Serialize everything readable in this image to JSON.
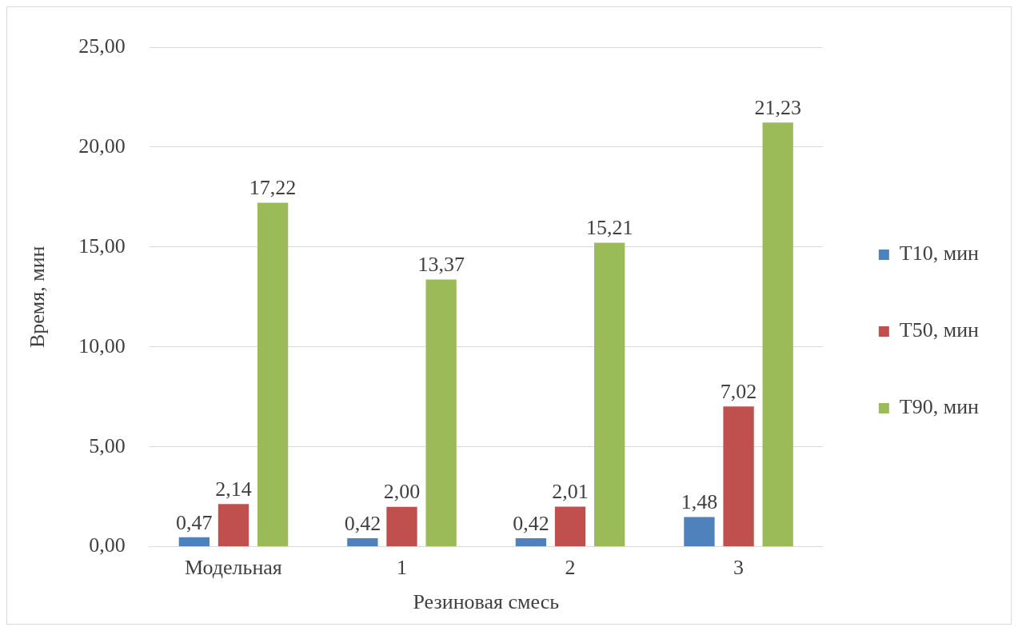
{
  "chart_data": {
    "type": "bar",
    "xlabel": "Резиновая смесь",
    "ylabel": "Время, мин",
    "categories": [
      "Модельная",
      "1",
      "2",
      "3"
    ],
    "series": [
      {
        "name": "T10, мин",
        "color": "#4f81bd",
        "values": [
          0.47,
          0.42,
          0.42,
          1.48
        ],
        "value_labels": [
          "0,47",
          "0,42",
          "0,42",
          "1,48"
        ]
      },
      {
        "name": "T50, мин",
        "color": "#c0504d",
        "values": [
          2.14,
          2.0,
          2.01,
          7.02
        ],
        "value_labels": [
          "2,14",
          "2,00",
          "2,01",
          "7,02"
        ]
      },
      {
        "name": "T90, мин",
        "color": "#9bbb59",
        "values": [
          17.22,
          13.37,
          15.21,
          21.23
        ],
        "value_labels": [
          "17,22",
          "13,37",
          "15,21",
          "21,23"
        ]
      }
    ],
    "ylim": [
      0,
      25
    ],
    "yticks": [
      {
        "value": 0,
        "label": "0,00"
      },
      {
        "value": 5,
        "label": "5,00"
      },
      {
        "value": 10,
        "label": "10,00"
      },
      {
        "value": 15,
        "label": "15,00"
      },
      {
        "value": 20,
        "label": "20,00"
      },
      {
        "value": 25,
        "label": "25,00"
      }
    ],
    "grid": "y",
    "legend": "right"
  }
}
